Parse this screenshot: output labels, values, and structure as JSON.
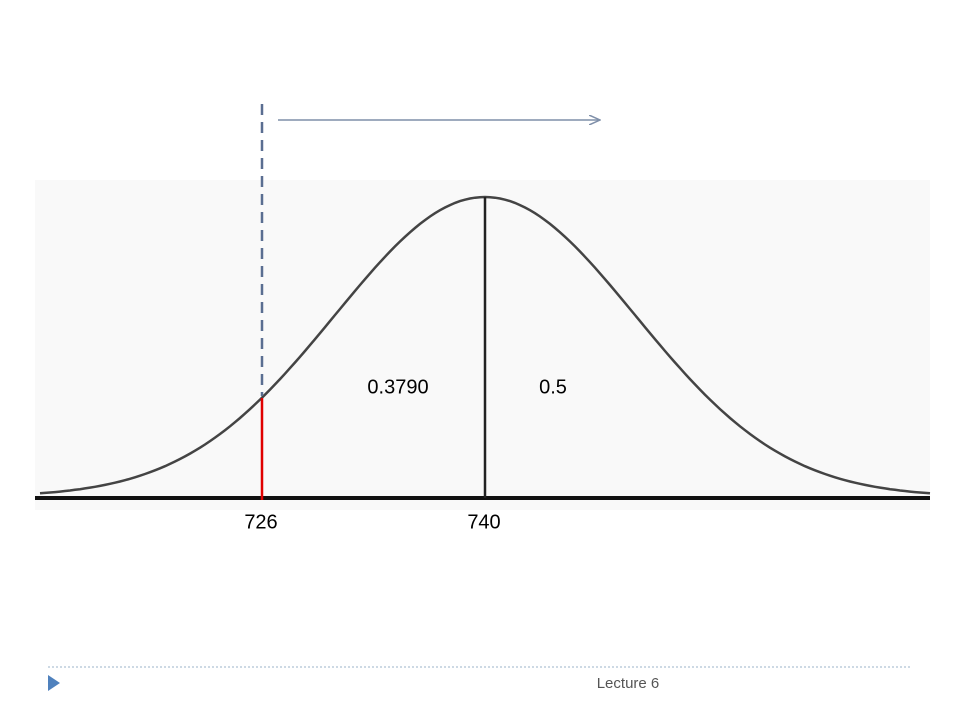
{
  "diagram": {
    "areas": [
      {
        "label": "0.3790"
      },
      {
        "label": "0.5"
      }
    ],
    "markers": [
      {
        "label": "726"
      },
      {
        "label": "740"
      }
    ]
  },
  "footer": {
    "text": "Lecture 6"
  }
}
